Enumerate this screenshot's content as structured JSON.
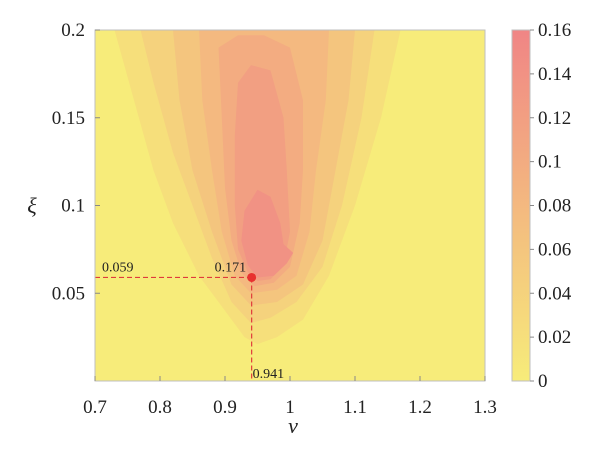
{
  "chart_data": {
    "type": "heatmap",
    "xlabel": "ν",
    "ylabel": "ξ",
    "xlim": [
      0.7,
      1.3
    ],
    "ylim": [
      0.0,
      0.2
    ],
    "x_ticks": [
      "0.7",
      "0.8",
      "0.9",
      "1",
      "1.1",
      "1.2",
      "1.3"
    ],
    "y_ticks": [
      "0.05",
      "0.1",
      "0.15",
      "0.2"
    ],
    "colorbar": {
      "range": [
        0,
        0.16
      ],
      "ticks": [
        "0",
        "0.02",
        "0.04",
        "0.06",
        "0.08",
        "0.1",
        "0.12",
        "0.14",
        "0.16"
      ],
      "colors": [
        "#f7ec7a",
        "#f08585"
      ]
    },
    "contour_levels": [
      {
        "level": 0.02,
        "points": [
          [
            0.73,
            0.2
          ],
          [
            0.76,
            0.16
          ],
          [
            0.79,
            0.12
          ],
          [
            0.82,
            0.09
          ],
          [
            0.86,
            0.06
          ],
          [
            0.9,
            0.04
          ],
          [
            0.93,
            0.025
          ],
          [
            0.95,
            0.021
          ],
          [
            0.98,
            0.025
          ],
          [
            1.02,
            0.035
          ],
          [
            1.06,
            0.06
          ],
          [
            1.1,
            0.1
          ],
          [
            1.14,
            0.15
          ],
          [
            1.17,
            0.2
          ]
        ]
      },
      {
        "level": 0.04,
        "points": [
          [
            0.77,
            0.2
          ],
          [
            0.79,
            0.17
          ],
          [
            0.82,
            0.13
          ],
          [
            0.85,
            0.1
          ],
          [
            0.88,
            0.07
          ],
          [
            0.91,
            0.045
          ],
          [
            0.94,
            0.033
          ],
          [
            0.97,
            0.036
          ],
          [
            1.01,
            0.045
          ],
          [
            1.05,
            0.065
          ],
          [
            1.08,
            0.1
          ],
          [
            1.11,
            0.15
          ],
          [
            1.13,
            0.2
          ]
        ]
      },
      {
        "level": 0.06,
        "points": [
          [
            0.82,
            0.2
          ],
          [
            0.83,
            0.16
          ],
          [
            0.85,
            0.12
          ],
          [
            0.88,
            0.085
          ],
          [
            0.91,
            0.055
          ],
          [
            0.94,
            0.043
          ],
          [
            0.98,
            0.045
          ],
          [
            1.02,
            0.055
          ],
          [
            1.05,
            0.08
          ],
          [
            1.07,
            0.12
          ],
          [
            1.09,
            0.16
          ],
          [
            1.1,
            0.2
          ]
        ]
      },
      {
        "level": 0.08,
        "points": [
          [
            0.86,
            0.2
          ],
          [
            0.865,
            0.16
          ],
          [
            0.88,
            0.12
          ],
          [
            0.895,
            0.085
          ],
          [
            0.915,
            0.06
          ],
          [
            0.94,
            0.05
          ],
          [
            0.98,
            0.052
          ],
          [
            1.01,
            0.06
          ],
          [
            1.03,
            0.085
          ],
          [
            1.04,
            0.12
          ],
          [
            1.055,
            0.16
          ],
          [
            1.06,
            0.2
          ]
        ]
      },
      {
        "level": 0.1,
        "points": [
          [
            0.89,
            0.19
          ],
          [
            0.895,
            0.15
          ],
          [
            0.9,
            0.11
          ],
          [
            0.91,
            0.08
          ],
          [
            0.925,
            0.062
          ],
          [
            0.945,
            0.054
          ],
          [
            0.975,
            0.056
          ],
          [
            1.0,
            0.065
          ],
          [
            1.015,
            0.09
          ],
          [
            1.02,
            0.12
          ],
          [
            1.02,
            0.16
          ],
          [
            1.0,
            0.19
          ],
          [
            0.96,
            0.197
          ],
          [
            0.92,
            0.197
          ]
        ]
      },
      {
        "level": 0.12,
        "points": [
          [
            0.92,
            0.17
          ],
          [
            0.915,
            0.14
          ],
          [
            0.915,
            0.1
          ],
          [
            0.92,
            0.075
          ],
          [
            0.935,
            0.062
          ],
          [
            0.95,
            0.057
          ],
          [
            0.97,
            0.058
          ],
          [
            0.99,
            0.066
          ],
          [
            1.0,
            0.085
          ],
          [
            0.995,
            0.12
          ],
          [
            0.99,
            0.15
          ],
          [
            0.97,
            0.177
          ],
          [
            0.94,
            0.18
          ]
        ]
      },
      {
        "level": 0.14,
        "points": [
          [
            0.93,
            0.097
          ],
          [
            0.925,
            0.08
          ],
          [
            0.935,
            0.066
          ],
          [
            0.95,
            0.059
          ],
          [
            0.975,
            0.06
          ],
          [
            0.995,
            0.067
          ],
          [
            1.005,
            0.073
          ],
          [
            0.99,
            0.078
          ],
          [
            0.985,
            0.09
          ],
          [
            0.97,
            0.105
          ],
          [
            0.95,
            0.109
          ]
        ]
      }
    ],
    "optimum": {
      "x": 0.941,
      "y": 0.059,
      "value": 0.171
    },
    "annotations": {
      "x_label": "0.941",
      "y_label": "0.059",
      "value_label": "0.171"
    }
  }
}
